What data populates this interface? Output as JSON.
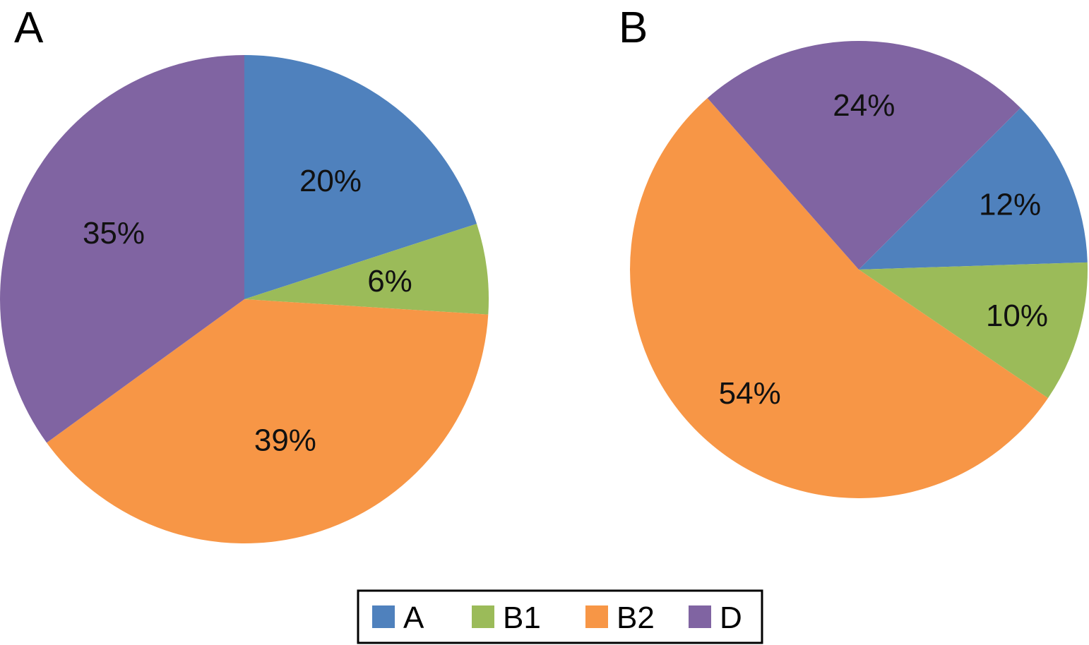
{
  "colors": {
    "A": "#4F81BD",
    "B1": "#9BBB59",
    "B2": "#F79646",
    "D": "#8064A2"
  },
  "legend": {
    "placement": "bottom-center",
    "entries": [
      "A",
      "B1",
      "B2",
      "D"
    ]
  },
  "chart_data": [
    {
      "type": "pie",
      "title": "A",
      "categories": [
        "A",
        "B1",
        "B2",
        "D"
      ],
      "values": [
        20,
        6,
        39,
        35
      ],
      "labels": [
        "20%",
        "6%",
        "39%",
        "35%"
      ],
      "start_angle_deg": 0,
      "direction": "clockwise"
    },
    {
      "type": "pie",
      "title": "B",
      "categories": [
        "A",
        "B1",
        "B2",
        "D"
      ],
      "values": [
        12,
        10,
        54,
        24
      ],
      "labels": [
        "12%",
        "10%",
        "54%",
        "24%"
      ],
      "start_angle_deg": 45,
      "direction": "clockwise"
    }
  ]
}
